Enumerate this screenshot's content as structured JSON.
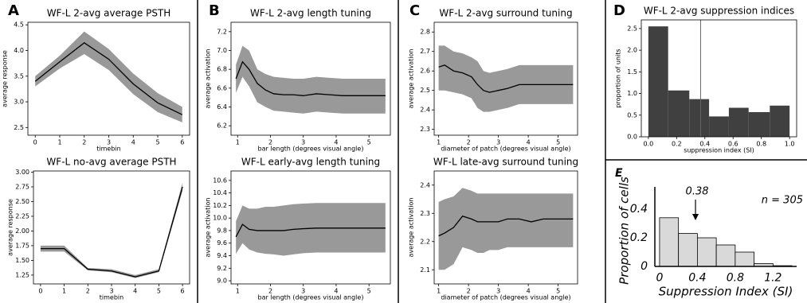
{
  "chart_data": [
    {
      "type": "line",
      "panel": "A",
      "title": "WF-L 2-avg average PSTH",
      "x_label": "timebin",
      "y_label": "average response",
      "x": [
        0,
        1,
        2,
        3,
        4,
        5,
        6
      ],
      "values": [
        3.4,
        3.78,
        4.15,
        3.83,
        3.35,
        2.98,
        2.75
      ],
      "lower": [
        3.3,
        3.65,
        3.93,
        3.62,
        3.15,
        2.8,
        2.6
      ],
      "upper": [
        3.5,
        3.9,
        4.37,
        4.03,
        3.55,
        3.17,
        2.9
      ],
      "color": "#000000",
      "band_color": "#999999",
      "xlim": [
        -0.3,
        6.3
      ],
      "xticks": [
        0,
        1,
        2,
        3,
        4,
        5,
        6
      ],
      "ylim": [
        2.35,
        4.55
      ],
      "yticks": [
        2.5,
        {
          "value": 3,
          "label": "3.0"
        },
        3.5,
        {
          "value": 4,
          "label": "4.0"
        },
        4.5
      ]
    },
    {
      "type": "line",
      "title": "WF-L no-avg average PSTH",
      "x_label": "timebin",
      "y_label": "average response",
      "x": [
        0,
        1,
        2,
        3,
        4,
        5,
        6
      ],
      "values": [
        1.7,
        1.7,
        1.35,
        1.32,
        1.22,
        1.32,
        2.75
      ],
      "lower": [
        1.65,
        1.65,
        1.33,
        1.3,
        1.2,
        1.3,
        2.68
      ],
      "upper": [
        1.75,
        1.75,
        1.37,
        1.35,
        1.25,
        1.35,
        2.82
      ],
      "color": "#000000",
      "band_color": "#999999",
      "xlim": [
        -0.3,
        6.3
      ],
      "xticks": [
        0,
        1,
        2,
        3,
        4,
        5,
        6
      ],
      "ylim": [
        1.1,
        3.02
      ],
      "yticks": [
        1.25,
        {
          "value": 1.5,
          "label": "1.50"
        },
        1.75,
        {
          "value": 2,
          "label": "2.00"
        },
        2.25,
        {
          "value": 2.5,
          "label": "2.50"
        },
        2.75,
        {
          "value": 3,
          "label": "3.00"
        }
      ]
    },
    {
      "type": "line",
      "panel": "B",
      "title": "WF-L 2-avg length tuning",
      "x_label": "bar length (degrees visual angle)",
      "y_label": "average activation",
      "x": [
        0.95,
        1.15,
        1.35,
        1.6,
        1.85,
        2.1,
        2.4,
        2.7,
        3.0,
        3.4,
        3.8,
        4.2,
        4.6,
        5.0,
        5.5
      ],
      "values": [
        6.7,
        6.88,
        6.8,
        6.65,
        6.58,
        6.54,
        6.53,
        6.53,
        6.52,
        6.54,
        6.53,
        6.52,
        6.52,
        6.52,
        6.52
      ],
      "lower": [
        6.55,
        6.72,
        6.62,
        6.45,
        6.4,
        6.36,
        6.35,
        6.34,
        6.33,
        6.35,
        6.34,
        6.33,
        6.33,
        6.33,
        6.33
      ],
      "upper": [
        6.85,
        7.05,
        7.0,
        6.8,
        6.75,
        6.72,
        6.71,
        6.7,
        6.7,
        6.72,
        6.71,
        6.7,
        6.7,
        6.7,
        6.7
      ],
      "color": "#000000",
      "band_color": "#999999",
      "xlim": [
        0.8,
        5.65
      ],
      "xticks": [
        1,
        2,
        3,
        4,
        5
      ],
      "ylim": [
        6.1,
        7.3
      ],
      "yticks": [
        6.2,
        6.4,
        6.6,
        6.8,
        {
          "value": 7,
          "label": "7.0"
        },
        7.2
      ]
    },
    {
      "type": "line",
      "title": "WF-L early-avg length tuning",
      "x_label": "bar length (degrees visual angle)",
      "y_label": "average activation",
      "x": [
        0.95,
        1.15,
        1.35,
        1.6,
        1.85,
        2.1,
        2.4,
        2.7,
        3.0,
        3.4,
        3.8,
        4.2,
        4.6,
        5.0,
        5.5
      ],
      "values": [
        9.7,
        9.9,
        9.82,
        9.8,
        9.8,
        9.8,
        9.8,
        9.82,
        9.83,
        9.84,
        9.84,
        9.84,
        9.84,
        9.84,
        9.84
      ],
      "lower": [
        9.43,
        9.6,
        9.5,
        9.45,
        9.43,
        9.42,
        9.4,
        9.42,
        9.44,
        9.45,
        9.45,
        9.45,
        9.45,
        9.45,
        9.45
      ],
      "upper": [
        9.95,
        10.2,
        10.15,
        10.15,
        10.18,
        10.18,
        10.2,
        10.22,
        10.23,
        10.24,
        10.24,
        10.24,
        10.24,
        10.24,
        10.24
      ],
      "color": "#000000",
      "band_color": "#999999",
      "xlim": [
        0.8,
        5.65
      ],
      "xticks": [
        1,
        2,
        3,
        4,
        5
      ],
      "ylim": [
        8.95,
        10.75
      ],
      "yticks": [
        {
          "value": 9,
          "label": "9.0"
        },
        9.2,
        9.4,
        9.6,
        9.8,
        {
          "value": 10,
          "label": "10.0"
        },
        10.2,
        10.4,
        10.6
      ]
    },
    {
      "type": "line",
      "panel": "C",
      "title": "WF-L 2-avg surround tuning",
      "x_label": "diameter of patch (degrees visual angle)",
      "y_label": "average activation",
      "x": [
        1,
        1.2,
        1.5,
        1.8,
        2.1,
        2.3,
        2.5,
        2.7,
        3.0,
        3.3,
        3.7,
        4.1,
        4.5,
        5.0,
        5.5
      ],
      "values": [
        2.62,
        2.63,
        2.6,
        2.59,
        2.57,
        2.53,
        2.5,
        2.49,
        2.5,
        2.51,
        2.53,
        2.53,
        2.53,
        2.53,
        2.53
      ],
      "lower": [
        2.5,
        2.5,
        2.49,
        2.48,
        2.46,
        2.41,
        2.39,
        2.39,
        2.4,
        2.41,
        2.43,
        2.43,
        2.43,
        2.43,
        2.43
      ],
      "upper": [
        2.73,
        2.73,
        2.7,
        2.69,
        2.67,
        2.65,
        2.6,
        2.59,
        2.6,
        2.61,
        2.63,
        2.63,
        2.63,
        2.63,
        2.63
      ],
      "color": "#000000",
      "band_color": "#999999",
      "xlim": [
        0.85,
        5.65
      ],
      "xticks": [
        1,
        2,
        3,
        4,
        5
      ],
      "ylim": [
        2.27,
        2.85
      ],
      "yticks": [
        2.3,
        2.4,
        2.5,
        2.6,
        2.7,
        2.8
      ]
    },
    {
      "type": "line",
      "title": "WF-L late-avg surround tuning",
      "x_label": "diameter of patch (degrees visual angle)",
      "y_label": "average activation",
      "x": [
        1,
        1.2,
        1.5,
        1.8,
        2.1,
        2.3,
        2.5,
        2.7,
        3.0,
        3.3,
        3.7,
        4.1,
        4.5,
        5.0,
        5.5
      ],
      "values": [
        2.22,
        2.23,
        2.25,
        2.29,
        2.28,
        2.27,
        2.27,
        2.27,
        2.27,
        2.28,
        2.28,
        2.27,
        2.28,
        2.28,
        2.28
      ],
      "lower": [
        2.1,
        2.1,
        2.12,
        2.18,
        2.17,
        2.16,
        2.16,
        2.17,
        2.17,
        2.18,
        2.18,
        2.18,
        2.18,
        2.18,
        2.18
      ],
      "upper": [
        2.34,
        2.35,
        2.36,
        2.39,
        2.38,
        2.37,
        2.37,
        2.37,
        2.37,
        2.37,
        2.37,
        2.37,
        2.37,
        2.37,
        2.37
      ],
      "color": "#000000",
      "band_color": "#999999",
      "xlim": [
        0.85,
        5.65
      ],
      "xticks": [
        1,
        2,
        3,
        4,
        5
      ],
      "ylim": [
        2.05,
        2.45
      ],
      "yticks": [
        2.1,
        2.2,
        2.3,
        2.4
      ]
    },
    {
      "type": "histogram",
      "panel": "D",
      "title": "WF-L 2-avg suppression indices",
      "x_label": "suppression index (SI)",
      "y_label": "proportion of units",
      "bins": [
        0,
        0.14,
        0.29,
        0.43,
        0.57,
        0.71,
        0.86,
        1
      ],
      "values": [
        2.55,
        1.07,
        0.87,
        0.47,
        0.67,
        0.57,
        0.72
      ],
      "color": "#404040",
      "mean_line": 0.37,
      "xlim": [
        -0.05,
        1.05
      ],
      "xticks": [
        {
          "value": 0,
          "label": "0.0"
        },
        0.2,
        0.4,
        0.6,
        0.8,
        {
          "value": 1,
          "label": "1.0"
        }
      ],
      "ylim": [
        0,
        2.7
      ],
      "yticks": [
        {
          "value": 0,
          "label": "0.0"
        },
        0.5,
        {
          "value": 1,
          "label": "1.0"
        },
        1.5,
        {
          "value": 2,
          "label": "2.0"
        },
        2.5
      ]
    },
    {
      "type": "histogram",
      "panel": "E",
      "x_label": "Suppression Index (SI)",
      "y_label": "Proportion of cells",
      "annotation": "n = 305",
      "bins": [
        0,
        0.2,
        0.4,
        0.6,
        0.8,
        1.0,
        1.2,
        1.4
      ],
      "values": [
        0.34,
        0.23,
        0.2,
        0.15,
        0.1,
        0.02,
        0.005
      ],
      "color": "#d9d9d9",
      "marker": {
        "value": 0.38,
        "label": "0.38"
      },
      "xlim": [
        -0.05,
        1.45
      ],
      "xticks": [
        0,
        0.4,
        0.8,
        1.2
      ],
      "ylim": [
        0,
        0.5
      ],
      "yticks": [
        0,
        0.2,
        0.4
      ]
    }
  ]
}
